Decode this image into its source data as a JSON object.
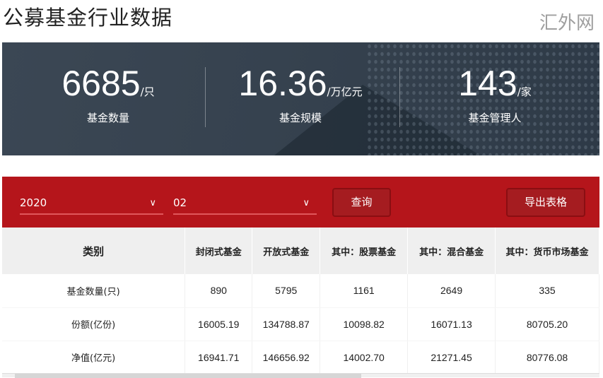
{
  "title": "公募基金行业数据",
  "stats": [
    {
      "value": "6685",
      "unit": "/只",
      "label": "基金数量"
    },
    {
      "value": "16.36",
      "unit": "/万亿元",
      "label": "基金规模"
    },
    {
      "value": "143",
      "unit": "/家",
      "label": "基金管理人"
    }
  ],
  "filters": {
    "year": "2020",
    "month": "02",
    "query_label": "查询",
    "export_label": "导出表格",
    "chevron_icon": "chevron-down-icon"
  },
  "table": {
    "headers": [
      "类别",
      "封闭式基金",
      "开放式基金",
      "其中：股票基金",
      "其中：混合基金",
      "其中：货币市场基金"
    ],
    "rows": [
      [
        "基金数量(只)",
        "890",
        "5795",
        "1161",
        "2649",
        "335"
      ],
      [
        "份额(亿份)",
        "16005.19",
        "134788.87",
        "10098.82",
        "16071.13",
        "80705.20"
      ],
      [
        "净值(亿元)",
        "16941.71",
        "146656.92",
        "14002.70",
        "21271.45",
        "80776.08"
      ]
    ]
  },
  "watermark": "汇外网",
  "colors": {
    "accent": "#b5151b",
    "banner": "#36424f"
  }
}
